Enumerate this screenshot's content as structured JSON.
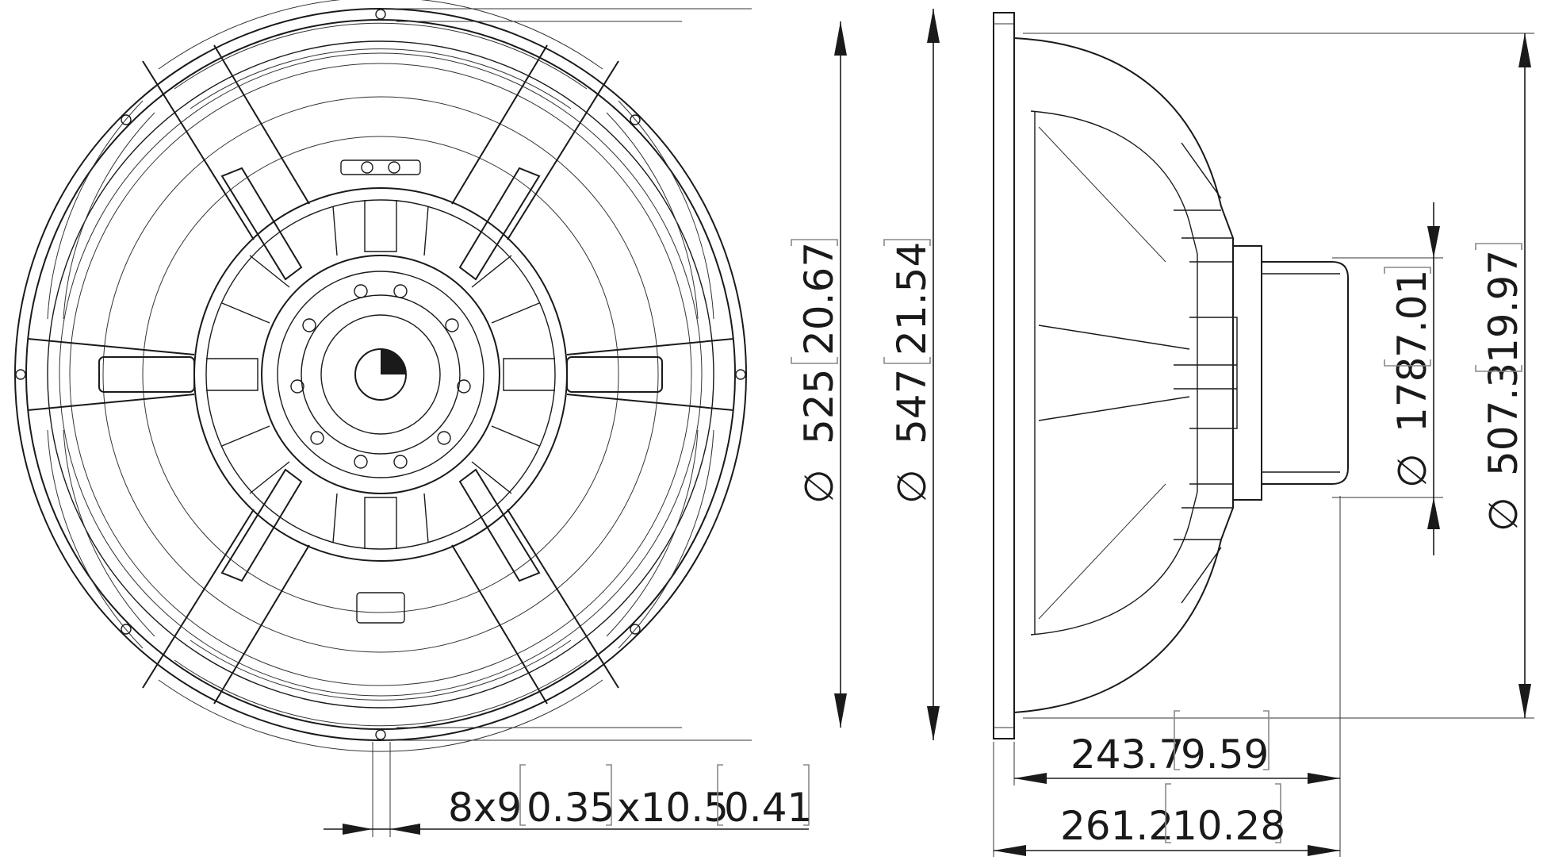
{
  "labels": {
    "d_525": "525",
    "d_525_in": "20.67",
    "d_547": "547",
    "d_547_in": "21.54",
    "d_178": "178",
    "d_178_in": "7.01",
    "d_507": "507.3",
    "d_507_in": "19.97",
    "depth_243": "243.7",
    "depth_243_in": "9.59",
    "depth_261": "261.2",
    "depth_261_in": "10.28",
    "holes_count": "8x9",
    "holes_w_in": "0.35",
    "holes_x": "x10.5",
    "holes_h_in": "0.41",
    "diameter_symbol": "∅"
  },
  "colors": {
    "line": "#1a1a1a",
    "bracket": "#888888",
    "background": "#ffffff"
  }
}
